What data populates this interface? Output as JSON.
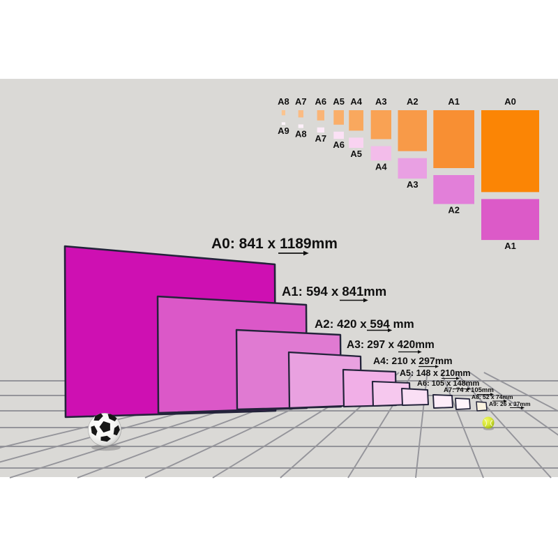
{
  "page": {
    "background": "#ffffff"
  },
  "scene": {
    "background": "#dad9d6",
    "grid_line_color": "#94949a",
    "sheet_border_color": "#23233a",
    "label_color": "#101010"
  },
  "nested_chart": {
    "columns": [
      {
        "parent_label": "A8",
        "child_label": "A9",
        "parent_color": "#fbc48f",
        "child_color": "#fef5fc"
      },
      {
        "parent_label": "A7",
        "child_label": "A8",
        "parent_color": "#fbbb82",
        "child_color": "#fdf0fa"
      },
      {
        "parent_label": "A6",
        "child_label": "A7",
        "parent_color": "#fab476",
        "child_color": "#fceaf8"
      },
      {
        "parent_label": "A5",
        "child_label": "A6",
        "parent_color": "#faae69",
        "child_color": "#fbe1f5"
      },
      {
        "parent_label": "A4",
        "child_label": "A5",
        "parent_color": "#f9a85e",
        "child_color": "#f9d3f1"
      },
      {
        "parent_label": "A3",
        "child_label": "A4",
        "parent_color": "#f9a254",
        "child_color": "#f3bcea"
      },
      {
        "parent_label": "A2",
        "child_label": "A3",
        "parent_color": "#f89a48",
        "child_color": "#e9a0e3"
      },
      {
        "parent_label": "A1",
        "child_label": "A2",
        "parent_color": "#f88f33",
        "child_color": "#e27fd9"
      },
      {
        "parent_label": "A0",
        "child_label": "A1",
        "parent_color": "#fb8505",
        "child_color": "#dc5ac8"
      }
    ]
  },
  "size_diagram": {
    "sheets": [
      {
        "name": "A0",
        "label": "A0: 841 x 1189mm",
        "width_mm": 841,
        "height_mm": 1189,
        "color": "#ce10b2"
      },
      {
        "name": "A1",
        "label": "A1: 594 x 841mm",
        "width_mm": 594,
        "height_mm": 841,
        "color": "#db58c8"
      },
      {
        "name": "A2",
        "label": "A2: 420 x 594 mm",
        "width_mm": 420,
        "height_mm": 594,
        "color": "#e07ad2"
      },
      {
        "name": "A3",
        "label": "A3: 297 x 420mm",
        "width_mm": 297,
        "height_mm": 420,
        "color": "#e9a1e0"
      },
      {
        "name": "A4",
        "label": "A4: 210 x 297mm",
        "width_mm": 210,
        "height_mm": 297,
        "color": "#f1afe7"
      },
      {
        "name": "A5",
        "label": "A5: 148 x 210mm",
        "width_mm": 148,
        "height_mm": 210,
        "color": "#f6c8ee"
      },
      {
        "name": "A6",
        "label": "A6: 105 x 148mm",
        "width_mm": 105,
        "height_mm": 148,
        "color": "#fadff5"
      },
      {
        "name": "A7",
        "label": "A7: 74 x 105mm",
        "width_mm": 74,
        "height_mm": 105,
        "color": "#fdedf9"
      },
      {
        "name": "A8",
        "label": "A8: 52 x 74mm",
        "width_mm": 52,
        "height_mm": 74,
        "color": "#fef4fb"
      },
      {
        "name": "A9",
        "label": "A9: 26 x 37mm",
        "width_mm": 26,
        "height_mm": 37,
        "color": "#faf3e0"
      }
    ]
  },
  "objects": {
    "soccer_ball": {
      "name": "soccer-ball",
      "primary_color": "#ffffff",
      "patch_color": "#161616"
    },
    "tennis_ball": {
      "name": "tennis-ball",
      "primary_color": "#d5e434"
    }
  }
}
